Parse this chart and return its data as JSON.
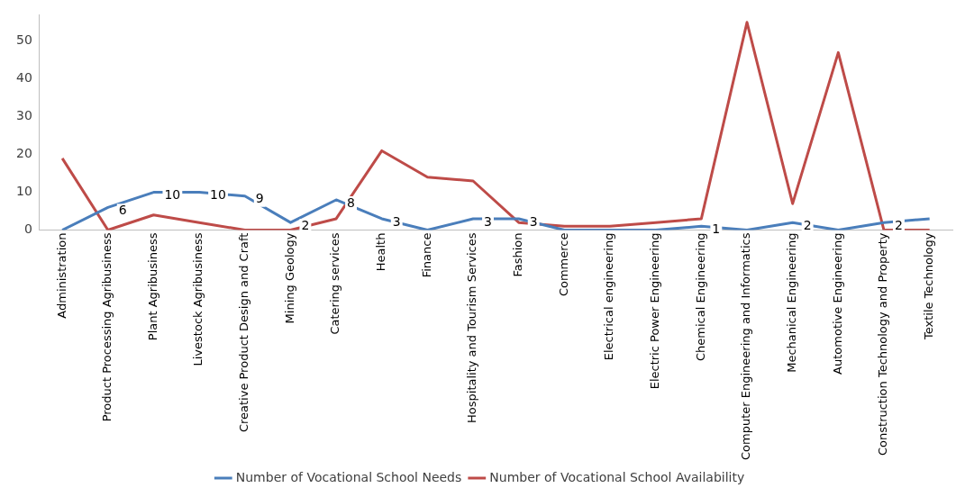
{
  "chart_data": {
    "type": "line",
    "categories": [
      "Administration",
      "Product Processing Agribusiness",
      "Plant Agribusiness",
      "Livestock Agribusiness",
      "Creative Product Design and Craft",
      "Mining Geology",
      "Catering services",
      "Health",
      "Finance",
      "Hospitality and Tourism Services",
      "Fashion",
      "Commerce",
      "Electrical engineering",
      "Electric Power Engineering",
      "Chemical Engineering",
      "Computer Engineering and Informatics",
      "Mechanical Engineering",
      "Automotive Engineering",
      "Construction Technology and Property",
      "Textile Technology"
    ],
    "series": [
      {
        "name": "Number of Vocational School Needs",
        "color": "#4a7ebb",
        "values": [
          0,
          6,
          10,
          10,
          9,
          2,
          8,
          3,
          0,
          3,
          3,
          0,
          0,
          0,
          1,
          0,
          2,
          0,
          2,
          3
        ],
        "value_labels": [
          null,
          "6",
          "10",
          "10",
          "9",
          "2",
          "8",
          "3",
          null,
          "3",
          "3",
          null,
          null,
          null,
          "1",
          null,
          "2",
          null,
          "2",
          null
        ]
      },
      {
        "name": "Number of Vocational School Availability",
        "color": "#be4b48",
        "values": [
          19,
          0,
          4,
          2,
          0,
          0,
          3,
          21,
          14,
          13,
          2,
          1,
          1,
          2,
          3,
          55,
          7,
          47,
          0,
          0
        ]
      }
    ],
    "ylim": [
      0,
      57
    ],
    "yticks": [
      0,
      10,
      20,
      30,
      40,
      50
    ],
    "grid": false,
    "legend": "bottom",
    "marker": "none",
    "line_style": "solid"
  }
}
